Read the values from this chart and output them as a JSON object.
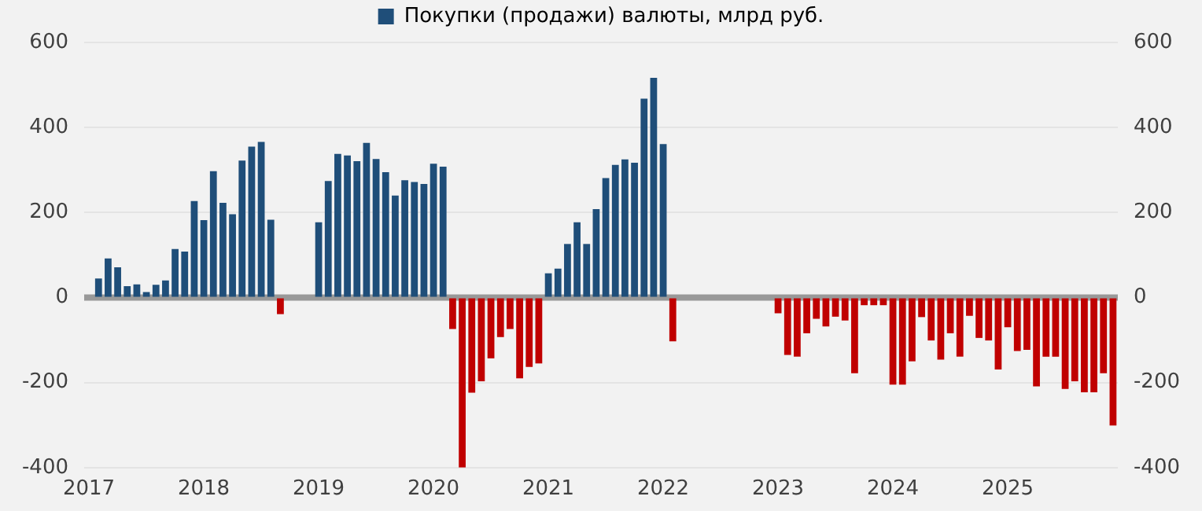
{
  "chart_data": {
    "type": "bar",
    "categories": [
      "2017",
      null,
      null,
      null,
      null,
      null,
      null,
      null,
      null,
      null,
      null,
      null,
      "2018",
      null,
      null,
      null,
      null,
      null,
      null,
      null,
      null,
      null,
      null,
      null,
      "2019",
      null,
      null,
      null,
      null,
      null,
      null,
      null,
      null,
      null,
      null,
      null,
      "2020",
      null,
      null,
      null,
      null,
      null,
      null,
      null,
      null,
      null,
      null,
      null,
      "2021",
      null,
      null,
      null,
      null,
      null,
      null,
      null,
      null,
      null,
      null,
      null,
      "2022",
      null,
      null,
      null,
      null,
      null,
      null,
      null,
      null,
      null,
      null,
      null,
      "2023",
      null,
      null,
      null,
      null,
      null,
      null,
      null,
      null,
      null,
      null,
      null,
      "2024",
      null,
      null,
      null,
      null,
      null,
      null,
      null,
      null,
      null,
      null,
      null,
      "2025",
      null,
      null,
      null,
      null,
      null,
      null,
      null,
      null,
      null,
      null,
      null
    ],
    "series": [
      {
        "name": "Покупки (продажи) валюты, млрд руб.",
        "color": "#1f4e79",
        "values": [
          null,
          45,
          92,
          71,
          27,
          31,
          13,
          30,
          40,
          114,
          108,
          227,
          182,
          297,
          223,
          196,
          322,
          355,
          366,
          183,
          -39,
          null,
          null,
          null,
          177,
          274,
          338,
          334,
          321,
          364,
          326,
          295,
          240,
          276,
          272,
          267,
          315,
          308,
          -74,
          -400,
          -224,
          -197,
          -143,
          -93,
          -74,
          -190,
          -163,
          -155,
          57,
          68,
          126,
          177,
          126,
          208,
          281,
          312,
          325,
          317,
          468,
          517,
          361,
          -103,
          null,
          null,
          null,
          null,
          null,
          null,
          null,
          null,
          null,
          null,
          -37,
          -135,
          -139,
          -84,
          -50,
          -68,
          -45,
          -54,
          -178,
          -18,
          -18,
          -18,
          -205,
          -205,
          -150,
          -46,
          -101,
          -146,
          -84,
          -139,
          -43,
          -95,
          -101,
          -169,
          -70,
          -126,
          -123,
          -209,
          -139,
          -139,
          -215,
          -197,
          -223,
          -223,
          -178,
          -301
        ],
        "colors": [
          "#1f4e79",
          "#1f4e79",
          "#1f4e79",
          "#1f4e79",
          "#1f4e79",
          "#1f4e79",
          "#1f4e79",
          "#1f4e79",
          "#1f4e79",
          "#1f4e79",
          "#1f4e79",
          "#1f4e79",
          "#1f4e79",
          "#1f4e79",
          "#1f4e79",
          "#1f4e79",
          "#1f4e79",
          "#1f4e79",
          "#1f4e79",
          "#1f4e79",
          "#c00000",
          "#1f4e79",
          "#1f4e79",
          "#1f4e79",
          "#1f4e79",
          "#1f4e79",
          "#1f4e79",
          "#1f4e79",
          "#1f4e79",
          "#1f4e79",
          "#1f4e79",
          "#1f4e79",
          "#1f4e79",
          "#1f4e79",
          "#1f4e79",
          "#1f4e79",
          "#1f4e79",
          "#1f4e79",
          "#c00000",
          "#c00000",
          "#c00000",
          "#c00000",
          "#c00000",
          "#c00000",
          "#c00000",
          "#c00000",
          "#c00000",
          "#c00000",
          "#1f4e79",
          "#1f4e79",
          "#1f4e79",
          "#1f4e79",
          "#1f4e79",
          "#1f4e79",
          "#1f4e79",
          "#1f4e79",
          "#1f4e79",
          "#1f4e79",
          "#1f4e79",
          "#1f4e79",
          "#1f4e79",
          "#c00000",
          "#1f4e79",
          "#1f4e79",
          "#1f4e79",
          "#1f4e79",
          "#1f4e79",
          "#1f4e79",
          "#1f4e79",
          "#1f4e79",
          "#1f4e79",
          "#1f4e79",
          "#c00000",
          "#c00000",
          "#c00000",
          "#c00000",
          "#c00000",
          "#c00000",
          "#c00000",
          "#c00000",
          "#c00000",
          "#c00000",
          "#c00000",
          "#c00000",
          "#c00000",
          "#c00000",
          "#c00000",
          "#c00000",
          "#c00000",
          "#c00000",
          "#c00000",
          "#c00000",
          "#c00000",
          "#c00000",
          "#c00000",
          "#c00000",
          "#c00000",
          "#c00000",
          "#c00000",
          "#c00000",
          "#c00000",
          "#c00000",
          "#c00000",
          "#c00000",
          "#c00000",
          "#c00000",
          "#c00000",
          "#c00000"
        ]
      }
    ],
    "ylim": [
      -400,
      600
    ],
    "yticks": [
      -400,
      -200,
      0,
      200,
      400,
      600
    ],
    "y2lim": [
      -400,
      600
    ],
    "y2ticks": [
      -400,
      -200,
      0,
      200,
      400,
      600
    ],
    "ref_lines": [
      {
        "axis": "y",
        "value": 0,
        "color": "#999999"
      }
    ],
    "grid": "y",
    "legend": "top"
  }
}
